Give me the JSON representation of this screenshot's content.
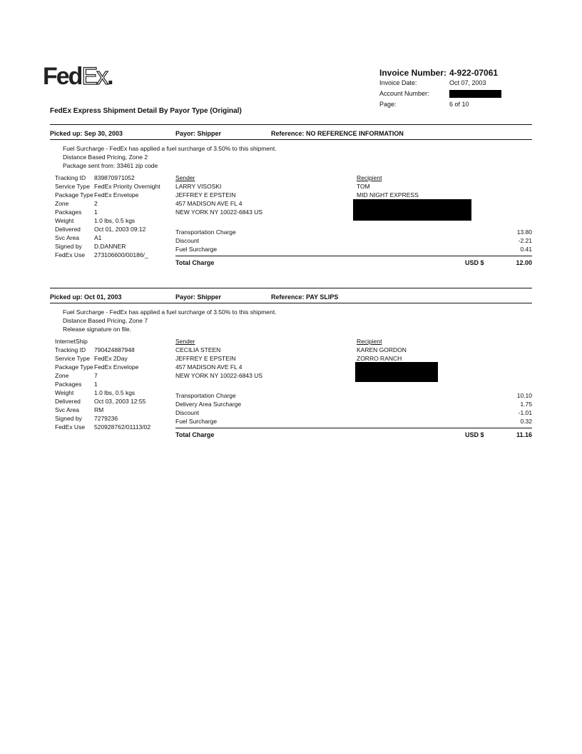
{
  "header": {
    "logo_text": "FedEx",
    "invoice_number_label": "Invoice Number:",
    "invoice_number": "4-922-07061",
    "invoice_date_label": "Invoice Date:",
    "invoice_date": "Oct 07, 2003",
    "account_number_label": "Account Number:",
    "page_label": "Page:",
    "page": "6 of 10"
  },
  "title": "FedEx Express Shipment Detail By Payor Type (Original)",
  "shipments": [
    {
      "picked_up": "Picked up: Sep 30, 2003",
      "payor": "Payor: Shipper",
      "reference": "Reference: NO REFERENCE INFORMATION",
      "notes": [
        "Fuel Surcharge - FedEx has applied a fuel surcharge of 3.50% to this shipment.",
        "Distance Based Pricing, Zone 2",
        "Package sent from: 33461 zip code"
      ],
      "details": [
        [
          "Tracking ID",
          "839870971052"
        ],
        [
          "Service Type",
          "FedEx Priority Overnight"
        ],
        [
          "Package Type",
          "FedEx Envelope"
        ],
        [
          "Zone",
          "2"
        ],
        [
          "Packages",
          "1"
        ],
        [
          "Weight",
          "1.0 lbs, 0.5 kgs"
        ],
        [
          "Delivered",
          "Oct 01, 2003 09:12"
        ],
        [
          "Svc Area",
          "A1"
        ],
        [
          "Signed by",
          "D.DANNER"
        ],
        [
          "FedEx Use",
          "273106600/00186/_"
        ]
      ],
      "sender_label": "Sender",
      "sender": [
        "LARRY VISOSKI",
        "JEFFREY E EPSTEIN",
        "457 MADISON AVE FL 4",
        "NEW YORK NY 10022-6843  US"
      ],
      "recipient_label": "Recipient",
      "recipient": [
        "TOM",
        "MID NIGHT EXPRESS"
      ],
      "charges": [
        [
          "Transportation Charge",
          "13.80"
        ],
        [
          "Discount",
          "-2.21"
        ],
        [
          "Fuel Surcharge",
          "0.41"
        ]
      ],
      "total_label": "Total Charge",
      "currency": "USD $",
      "total": "12.00"
    },
    {
      "picked_up": "Picked up: Oct 01, 2003",
      "payor": "Payor: Shipper",
      "reference": "Reference: PAY SLIPS",
      "notes": [
        "Fuel Surcharge - FedEx has applied a fuel surcharge of 3.50% to this shipment.",
        "Distance Based Pricing, Zone 7",
        "Release signature on file."
      ],
      "internet_ship": "InternetShip",
      "details": [
        [
          "Tracking ID",
          "790424887948"
        ],
        [
          "Service Type",
          "FedEx 2Day"
        ],
        [
          "Package Type",
          "FedEx Envelope"
        ],
        [
          "Zone",
          "7"
        ],
        [
          "Packages",
          "1"
        ],
        [
          "Weight",
          "1.0 lbs, 0.5 kgs"
        ],
        [
          "Delivered",
          "Oct 03, 2003 12:55"
        ],
        [
          "Svc Area",
          "RM"
        ],
        [
          "Signed by",
          "7279236"
        ],
        [
          "FedEx Use",
          "520928762/01113/02"
        ]
      ],
      "sender_label": "Sender",
      "sender": [
        "CECILIA STEEN",
        "JEFFREY E EPSTEIN",
        "457 MADISON AVE FL 4",
        "NEW YORK NY 10022-6843  US"
      ],
      "recipient_label": "Recipient",
      "recipient": [
        "KAREN GORDON",
        "ZORRO RANCH"
      ],
      "charges": [
        [
          "Transportation Charge",
          "10.10"
        ],
        [
          "Delivery Area Surcharge",
          "1.75"
        ],
        [
          "Discount",
          "-1.01"
        ],
        [
          "Fuel Surcharge",
          "0.32"
        ]
      ],
      "total_label": "Total Charge",
      "currency": "USD $",
      "total": "11.16"
    }
  ]
}
